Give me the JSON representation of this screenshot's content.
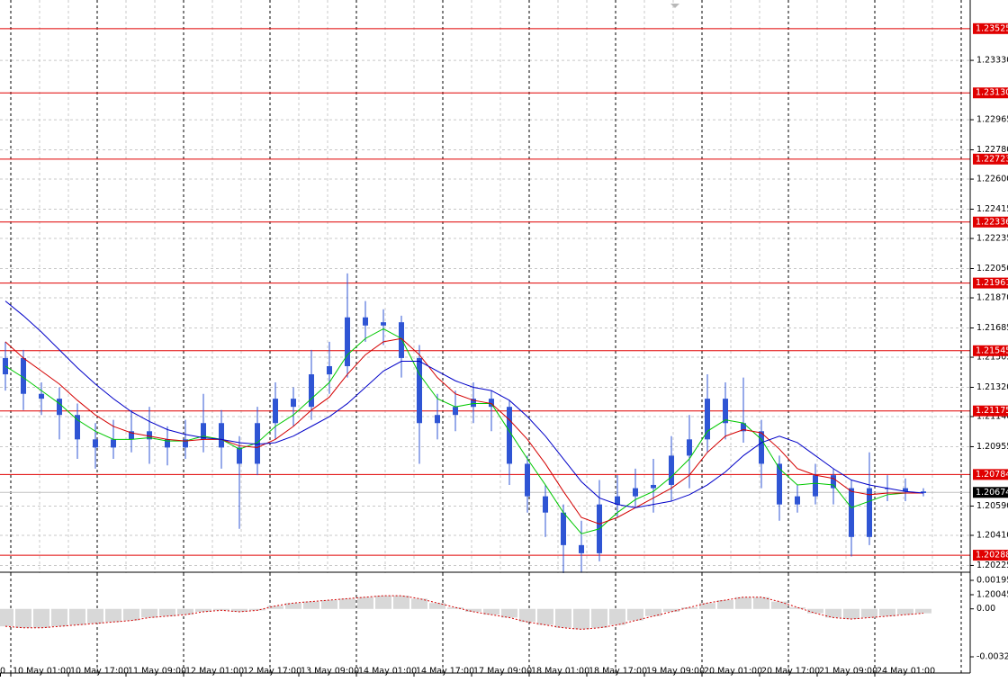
{
  "chart_data": {
    "type": "candlestick",
    "open": [
      1.214,
      1.215,
      1.2128,
      1.2125,
      1.2115,
      1.21,
      1.2095,
      1.21,
      1.2105,
      1.21,
      1.2095,
      1.21,
      1.211,
      1.2095,
      1.2085,
      1.211,
      1.2125,
      1.212,
      1.214,
      1.2145,
      1.2175,
      1.217,
      1.2172,
      1.215,
      1.211,
      1.2115,
      1.212,
      1.2125,
      1.212,
      1.2085,
      1.2065,
      1.2055,
      1.2035,
      1.203,
      1.206,
      1.2065,
      1.207,
      1.2072,
      1.209,
      1.21,
      1.2125,
      1.211,
      1.2105,
      1.2085,
      1.206,
      1.2065,
      1.2078,
      1.207,
      1.204,
      1.207,
      1.207,
      1.2068
    ],
    "high": [
      1.216,
      1.2155,
      1.2135,
      1.2132,
      1.2122,
      1.211,
      1.2112,
      1.2118,
      1.212,
      1.2108,
      1.2112,
      1.2128,
      1.2118,
      1.2102,
      1.212,
      1.2135,
      1.2132,
      1.2155,
      1.216,
      1.2202,
      1.2185,
      1.218,
      1.2176,
      1.2158,
      1.2128,
      1.213,
      1.2135,
      1.213,
      1.2124,
      1.209,
      1.2072,
      1.206,
      1.205,
      1.2075,
      1.2078,
      1.2082,
      1.2088,
      1.2102,
      1.2115,
      1.214,
      1.2135,
      1.2138,
      1.2112,
      1.209,
      1.2072,
      1.2085,
      1.2082,
      1.2075,
      1.2092,
      1.2078,
      1.2076,
      1.207
    ],
    "low": [
      1.213,
      1.2118,
      1.2115,
      1.21,
      1.2088,
      1.2082,
      1.2088,
      1.2092,
      1.2085,
      1.2084,
      1.2088,
      1.2092,
      1.2082,
      1.2045,
      1.2078,
      1.21,
      1.2108,
      1.2112,
      1.2128,
      1.2138,
      1.216,
      1.2158,
      1.2138,
      1.2085,
      1.21,
      1.2105,
      1.211,
      1.2105,
      1.2072,
      1.2055,
      1.204,
      1.2015,
      1.2018,
      1.2025,
      1.2052,
      1.2058,
      1.2055,
      1.2062,
      1.207,
      1.2092,
      1.21,
      1.2098,
      1.207,
      1.205,
      1.2055,
      1.206,
      1.206,
      1.2028,
      1.2035,
      1.2062,
      1.2062,
      1.2065
    ],
    "close": [
      1.215,
      1.2128,
      1.2125,
      1.2115,
      1.21,
      1.2095,
      1.21,
      1.2105,
      1.21,
      1.2095,
      1.21,
      1.211,
      1.2095,
      1.2085,
      1.211,
      1.2125,
      1.212,
      1.214,
      1.2145,
      1.2175,
      1.217,
      1.2172,
      1.215,
      1.211,
      1.2115,
      1.212,
      1.2125,
      1.212,
      1.2085,
      1.2065,
      1.2055,
      1.2035,
      1.203,
      1.206,
      1.2065,
      1.207,
      1.2072,
      1.209,
      1.21,
      1.2125,
      1.211,
      1.2105,
      1.2085,
      1.206,
      1.2065,
      1.2078,
      1.207,
      1.204,
      1.207,
      1.207,
      1.2068,
      1.2067
    ],
    "candle_color": "#2f55d4",
    "series": [
      {
        "color": "#00c800",
        "values": [
          1.2145,
          1.2138,
          1.213,
          1.2122,
          1.2112,
          1.2105,
          1.21,
          1.21,
          1.2101,
          1.2099,
          1.2099,
          1.2102,
          1.21,
          1.2094,
          1.2098,
          1.2108,
          1.2115,
          1.2125,
          1.2135,
          1.2152,
          1.2162,
          1.2168,
          1.2162,
          1.214,
          1.2125,
          1.212,
          1.2122,
          1.2122,
          1.2105,
          1.2088,
          1.2072,
          1.2055,
          1.2042,
          1.2045,
          1.2055,
          1.2063,
          1.2068,
          1.2077,
          1.2088,
          1.2105,
          1.2112,
          1.211,
          1.21,
          1.2082,
          1.2072,
          1.2073,
          1.2072,
          1.2058,
          1.2062,
          1.2066,
          1.2067,
          1.2067
        ]
      },
      {
        "color": "#d40000",
        "values": [
          1.216,
          1.215,
          1.2142,
          1.2134,
          1.2124,
          1.2115,
          1.2108,
          1.2104,
          1.2102,
          1.21,
          1.2099,
          1.21,
          1.21,
          1.2096,
          1.2095,
          1.21,
          1.2108,
          1.2118,
          1.2126,
          1.214,
          1.2152,
          1.216,
          1.2162,
          1.2152,
          1.2138,
          1.2128,
          1.2124,
          1.2122,
          1.2112,
          1.21,
          1.2085,
          1.2068,
          1.2052,
          1.2048,
          1.2052,
          1.2058,
          1.2064,
          1.207,
          1.2078,
          1.2092,
          1.2102,
          1.2106,
          1.2104,
          1.2094,
          1.2082,
          1.2078,
          1.2076,
          1.2068,
          1.2066,
          1.2067,
          1.2067,
          1.2067
        ]
      },
      {
        "color": "#0000c8",
        "values": [
          1.2185,
          1.2176,
          1.2166,
          1.2155,
          1.2144,
          1.2134,
          1.2125,
          1.2117,
          1.2111,
          1.2106,
          1.2103,
          1.2101,
          1.21,
          1.2098,
          1.2097,
          1.2098,
          1.2102,
          1.2108,
          1.2114,
          1.2122,
          1.2132,
          1.2142,
          1.2148,
          1.2148,
          1.2142,
          1.2136,
          1.2132,
          1.213,
          1.2124,
          1.2114,
          1.2102,
          1.2088,
          1.2074,
          1.2064,
          1.206,
          1.2058,
          1.206,
          1.2062,
          1.2066,
          1.2072,
          1.208,
          1.209,
          1.2098,
          1.2102,
          1.2098,
          1.209,
          1.2082,
          1.2075,
          1.2072,
          1.207,
          1.2068,
          1.2067
        ]
      }
    ],
    "ylim": [
      1.20045,
      1.23701
    ],
    "yticks": [
      {
        "value": 1.2333,
        "label": "1.23330"
      },
      1.22965,
      {
        "value": 1.2278,
        "label": "1.22780"
      },
      {
        "value": 1.226,
        "label": "1.22600"
      },
      1.22415,
      1.22235,
      {
        "value": 1.2205,
        "label": "1.22050"
      },
      {
        "value": 1.2187,
        "label": "1.21870"
      },
      1.21685,
      1.21505,
      {
        "value": 1.2132,
        "label": "1.21320"
      },
      {
        "value": 1.2114,
        "label": "1.21140"
      },
      1.20955,
      {
        "value": 1.2059,
        "label": "1.20590"
      },
      {
        "value": 1.2041,
        "label": "1.20410"
      },
      1.20225,
      1.20045
    ],
    "grid": true,
    "levels": [
      1.23525,
      {
        "value": 1.2313,
        "label": "1.23130"
      },
      1.22723,
      1.22336,
      1.21961,
      1.21545,
      1.21175,
      1.20784,
      1.20288
    ],
    "level_color": "#e00000",
    "current_price": 1.20674,
    "x_labels": [
      "0",
      "10 May 01:00",
      "10 May 17:00",
      "11 May 09:00",
      "12 May 01:00",
      "12 May 17:00",
      "13 May 09:00",
      "14 May 01:00",
      "14 May 17:00",
      "17 May 09:00",
      "18 May 01:00",
      "18 May 17:00",
      "19 May 09:00",
      "20 May 01:00",
      "20 May 17:00",
      "21 May 09:00",
      "24 May 01:00"
    ],
    "oscillator": {
      "values": [
        -0.0012,
        -0.0013,
        -0.0013,
        -0.0012,
        -0.0011,
        -0.001,
        -0.0009,
        -0.0008,
        -0.0006,
        -0.0005,
        -0.0004,
        -0.0002,
        -0.0001,
        -0.0002,
        -0.0001,
        0.0002,
        0.0004,
        0.0005,
        0.0006,
        0.0007,
        0.0008,
        0.0009,
        0.0009,
        0.0007,
        0.0004,
        0.0001,
        -0.0002,
        -0.0004,
        -0.0006,
        -0.0009,
        -0.0011,
        -0.0013,
        -0.0014,
        -0.0013,
        -0.0011,
        -0.0008,
        -0.0005,
        -0.0002,
        0.0001,
        0.0004,
        0.0006,
        0.0008,
        0.0008,
        0.0005,
        0.0001,
        -0.0003,
        -0.0006,
        -0.0007,
        -0.0006,
        -0.0005,
        -0.0004,
        -0.0003
      ],
      "bar_color": "#b0b0b0",
      "line_color": "#d40000",
      "ylim": [
        -0.00329,
        0.001957
      ],
      "yticks": [
        0.001957,
        {
          "value": 0,
          "label": "0.00"
        },
        -0.00329
      ]
    }
  }
}
